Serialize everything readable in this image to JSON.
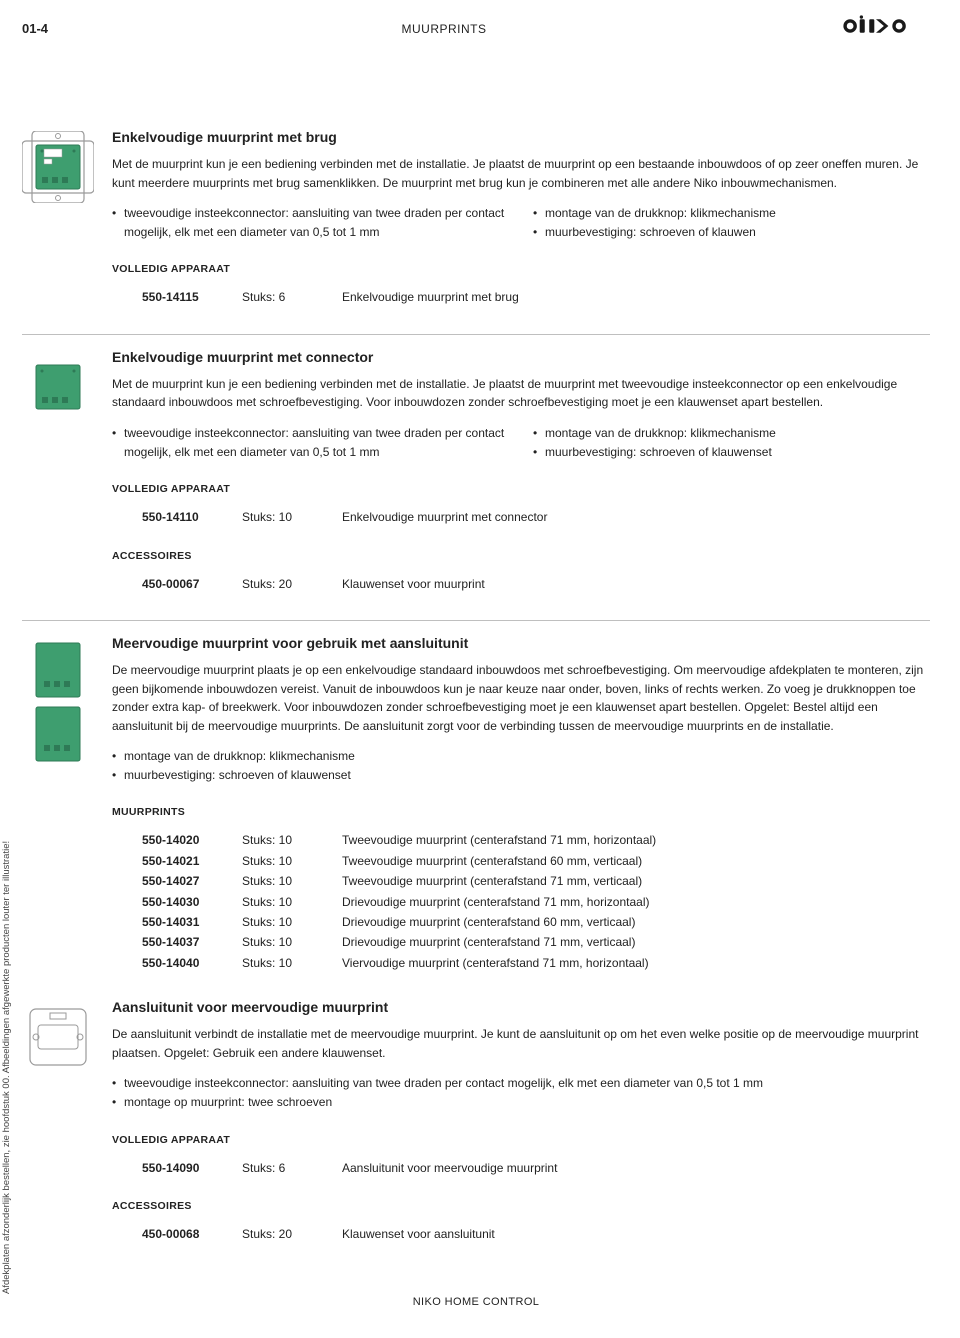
{
  "header": {
    "page_ref": "01-4",
    "title": "MUURPRINTS",
    "logo_text": "niko"
  },
  "colors": {
    "pcb_green": "#3e9e6f",
    "pcb_dark": "#2e7a56",
    "outline_grey": "#9a9a9a",
    "rule": "#bfbfbf"
  },
  "sidetext": "Afdekplaten afzonderlijk bestellen, zie hoofdstuk 00. Afbeeldingen afgewerkte producten louter ter illustratie!",
  "footer": "NIKO HOME CONTROL",
  "sections": [
    {
      "title": "Enkelvoudige muurprint met brug",
      "body": "Met de muurprint kun je een bediening verbinden met de installatie. Je plaatst de muurprint op een bestaande inbouwdoos of op zeer oneffen muren. Je kunt meerdere muurprints met brug samenklikken. De muurprint met brug kun je combineren met alle andere Niko inbouwmechanismen.",
      "bullets_left": [
        "tweevoudige insteekconnector: aansluiting van twee draden per contact mogelijk, elk met een diameter van 0,5 tot 1 mm"
      ],
      "bullets_right": [
        "montage van de drukknop: klikmechanisme",
        "muurbevestiging: schroeven of klauwen"
      ],
      "groups": [
        {
          "heading": "VOLLEDIG APPARAAT",
          "rows": [
            {
              "sku": "550-14115",
              "qty": "Stuks: 6",
              "desc": "Enkelvoudige muurprint met brug"
            }
          ]
        }
      ]
    },
    {
      "title": "Enkelvoudige muurprint met connector",
      "body": "Met de muurprint kun je een bediening verbinden met de installatie. Je plaatst de muurprint met tweevoudige insteekconnector op een enkelvoudige standaard inbouwdoos met schroefbevestiging. Voor inbouwdozen zonder schroefbevestiging moet je een klauwenset apart bestellen.",
      "bullets_left": [
        "tweevoudige insteekconnector: aansluiting van twee draden per contact mogelijk, elk met een diameter van 0,5 tot 1 mm"
      ],
      "bullets_right": [
        "montage van de drukknop: klikmechanisme",
        "muurbevestiging: schroeven of klauwenset"
      ],
      "groups": [
        {
          "heading": "VOLLEDIG APPARAAT",
          "rows": [
            {
              "sku": "550-14110",
              "qty": "Stuks: 10",
              "desc": "Enkelvoudige muurprint met connector"
            }
          ]
        },
        {
          "heading": "ACCESSOIRES",
          "rows": [
            {
              "sku": "450-00067",
              "qty": "Stuks: 20",
              "desc": "Klauwenset voor muurprint"
            }
          ]
        }
      ]
    },
    {
      "title": "Meervoudige muurprint voor gebruik met aansluitunit",
      "body": "De meervoudige muurprint plaats je op een enkelvoudige standaard inbouwdoos met schroefbevestiging. Om meervoudige afdekplaten te monteren, zijn geen bijkomende inbouwdozen vereist. Vanuit de inbouwdoos kun je naar keuze naar onder, boven, links of rechts werken. Zo voeg je drukknoppen toe zonder extra kap- of breekwerk. Voor inbouwdozen zonder schroefbevestiging moet je een klauwenset apart bestellen. Opgelet: Bestel altijd een aansluitunit bij de meervoudige muurprints. De aansluitunit zorgt voor de verbinding tussen de meervoudige muurprints en de installatie.",
      "bullets_single": [
        "montage van de drukknop: klikmechanisme",
        "muurbevestiging: schroeven of klauwenset"
      ],
      "groups": [
        {
          "heading": "MUURPRINTS",
          "rows": [
            {
              "sku": "550-14020",
              "qty": "Stuks: 10",
              "desc": "Tweevoudige muurprint (centerafstand 71 mm, horizontaal)"
            },
            {
              "sku": "550-14021",
              "qty": "Stuks: 10",
              "desc": "Tweevoudige muurprint (centerafstand 60 mm, verticaal)"
            },
            {
              "sku": "550-14027",
              "qty": "Stuks: 10",
              "desc": "Tweevoudige muurprint (centerafstand 71 mm, verticaal)"
            },
            {
              "sku": "550-14030",
              "qty": "Stuks: 10",
              "desc": "Drievoudige muurprint (centerafstand 71 mm, horizontaal)"
            },
            {
              "sku": "550-14031",
              "qty": "Stuks: 10",
              "desc": "Drievoudige muurprint (centerafstand 60 mm, verticaal)"
            },
            {
              "sku": "550-14037",
              "qty": "Stuks: 10",
              "desc": "Drievoudige muurprint (centerafstand 71 mm, verticaal)"
            },
            {
              "sku": "550-14040",
              "qty": "Stuks: 10",
              "desc": "Viervoudige muurprint (centerafstand 71 mm, horizontaal)"
            }
          ]
        }
      ]
    },
    {
      "title": "Aansluitunit voor meervoudige muurprint",
      "body": "De aansluitunit verbindt de installatie met de meervoudige muurprint. Je kunt de aansluitunit op om het even welke positie op de meervoudige muurprint plaatsen. Opgelet: Gebruik een andere klauwenset.",
      "bullets_single": [
        "tweevoudige insteekconnector: aansluiting van twee draden per contact mogelijk, elk met een diameter van 0,5 tot 1 mm",
        "montage op muurprint: twee schroeven"
      ],
      "groups": [
        {
          "heading": "VOLLEDIG APPARAAT",
          "rows": [
            {
              "sku": "550-14090",
              "qty": "Stuks: 6",
              "desc": "Aansluitunit voor meervoudige muurprint"
            }
          ]
        },
        {
          "heading": "ACCESSOIRES",
          "rows": [
            {
              "sku": "450-00068",
              "qty": "Stuks: 20",
              "desc": "Klauwenset voor aansluitunit"
            }
          ]
        }
      ]
    }
  ]
}
